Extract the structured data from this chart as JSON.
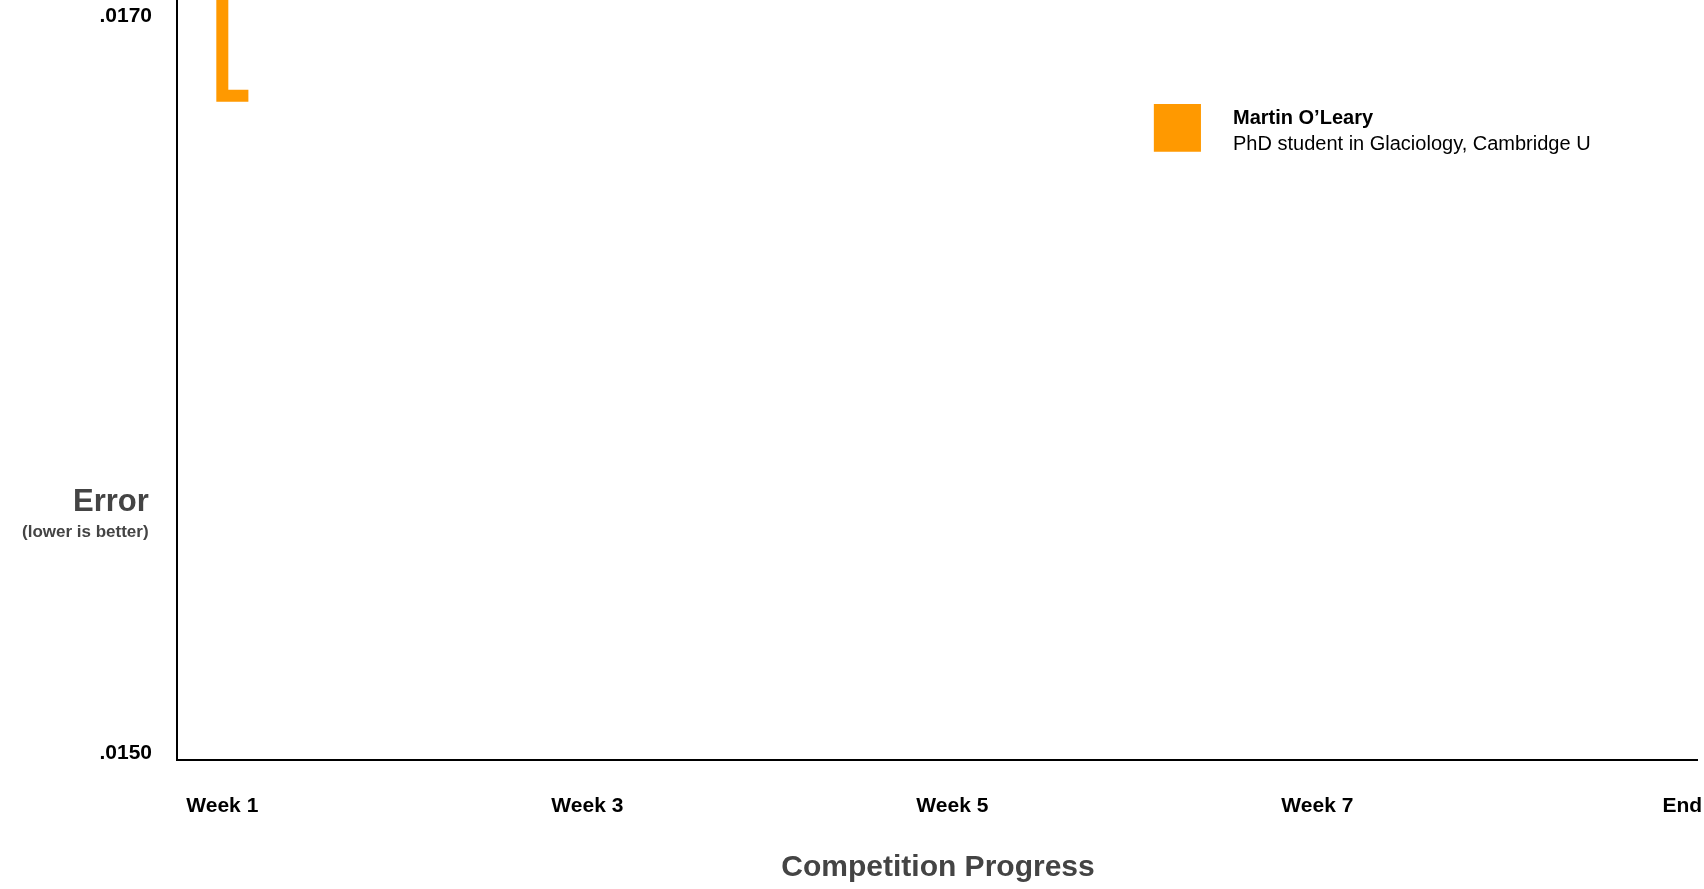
{
  "chart_data": {
    "type": "step",
    "xlabel": "Competition Progress",
    "ylabel": "Error\n(lower is better)",
    "categories": [
      "Week 1",
      null,
      null,
      null,
      null,
      null,
      null,
      null,
      null,
      null,
      null,
      null,
      null,
      null,
      "Week 3",
      null,
      null,
      null,
      null,
      null,
      null,
      null,
      null,
      null,
      null,
      null,
      null,
      null,
      "Week 5",
      null,
      null,
      null,
      null,
      null,
      null,
      null,
      null,
      null,
      null,
      null,
      null,
      null,
      "Week 7",
      null,
      null,
      null,
      null,
      null,
      null,
      null,
      null,
      null,
      null,
      null,
      null,
      null,
      "End"
    ],
    "series": [
      {
        "name": "Martin O’Leary",
        "color": "#ff9900",
        "values": [
          0.01704,
          0.01678,
          null,
          null,
          null,
          null,
          null,
          null,
          null,
          null,
          null,
          null,
          null,
          null,
          null,
          null,
          null,
          null,
          null,
          null,
          null,
          null,
          null,
          null,
          null,
          null,
          null,
          null,
          null,
          null,
          null,
          null,
          null,
          null,
          null,
          null,
          null,
          null,
          null,
          null,
          null,
          null,
          null,
          null,
          null,
          null,
          null,
          null,
          null,
          null,
          null,
          null,
          null,
          null,
          null,
          null,
          null
        ]
      }
    ],
    "annotations": [
      "PhD student in Glaciology, Cambridge U"
    ],
    "ylim": [
      0.01498,
      0.01704
    ],
    "yticks": [
      {
        "value": 0.015,
        "label": ".0150"
      },
      {
        "value": 0.017,
        "label": ".0170"
      }
    ],
    "legend": "top right",
    "marker": "none",
    "line_style": "solid"
  }
}
